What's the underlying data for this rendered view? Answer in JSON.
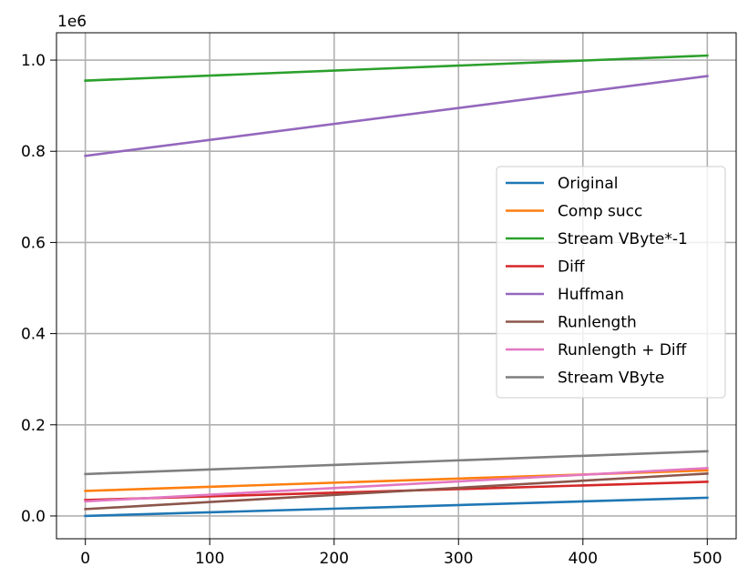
{
  "chart_data": {
    "type": "line",
    "title": "",
    "xlabel": "",
    "ylabel": "",
    "y_offset_label": "1e6",
    "xlim": [
      -23.2,
      523.2
    ],
    "ylim": [
      -0.05,
      1.06
    ],
    "x_ticks": [
      0,
      100,
      200,
      300,
      400,
      500
    ],
    "x_tick_labels": [
      "0",
      "100",
      "200",
      "300",
      "400",
      "500"
    ],
    "y_ticks": [
      0.0,
      0.2,
      0.4,
      0.6,
      0.8,
      1.0
    ],
    "y_tick_labels": [
      "0.0",
      "0.2",
      "0.4",
      "0.6",
      "0.8",
      "1.0"
    ],
    "grid": true,
    "legend_location": "center-right",
    "x": [
      0,
      500
    ],
    "series": [
      {
        "name": "Original",
        "color": "#1f77b4",
        "values": [
          0.0,
          0.04
        ]
      },
      {
        "name": "Comp succ",
        "color": "#ff7f0e",
        "values": [
          0.055,
          0.1
        ]
      },
      {
        "name": "Stream VByte*-1",
        "color": "#2ca02c",
        "values": [
          0.955,
          1.01
        ]
      },
      {
        "name": "Diff",
        "color": "#d62728",
        "values": [
          0.035,
          0.075
        ]
      },
      {
        "name": "Huffman",
        "color": "#9467bd",
        "values": [
          0.79,
          0.965
        ]
      },
      {
        "name": "Runlength",
        "color": "#8c564b",
        "values": [
          0.015,
          0.093
        ]
      },
      {
        "name": "Runlength + Diff",
        "color": "#e377c2",
        "values": [
          0.032,
          0.105
        ]
      },
      {
        "name": "Stream VByte",
        "color": "#7f7f7f",
        "values": [
          0.092,
          0.142
        ]
      }
    ]
  }
}
